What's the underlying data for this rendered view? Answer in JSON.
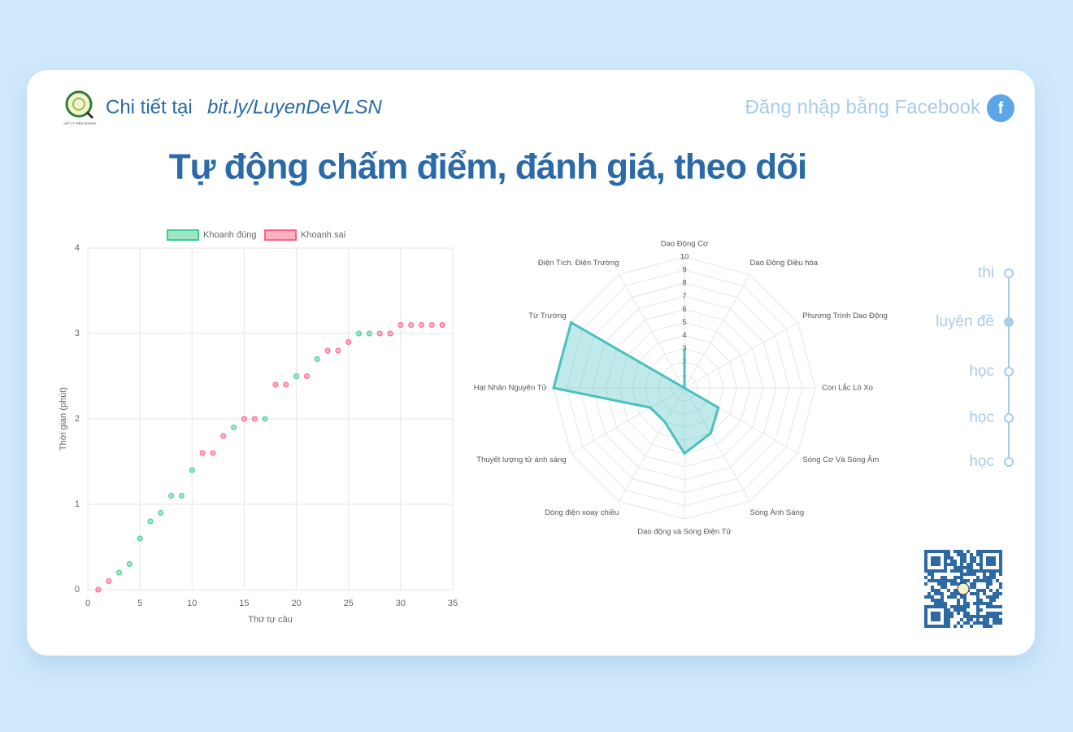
{
  "header": {
    "logo_text": "VẬT LÝ SIÊU NHANH",
    "link_prefix": "Chi tiết tại",
    "link": "bit.ly/LuyenDeVLSN",
    "login": "Đăng nhập bằng Facebook"
  },
  "title": "Tự động chấm điểm, đánh giá, theo dõi",
  "chart_data": [
    {
      "type": "scatter",
      "x_label": "Thứ tự câu",
      "y_label": "Thời gian (phút)",
      "xlim": [
        0,
        35
      ],
      "xticks": [
        0,
        5,
        10,
        15,
        20,
        25,
        30,
        35
      ],
      "ylim": [
        0,
        4
      ],
      "yticks": [
        0,
        1,
        2,
        3,
        4
      ],
      "grid": true,
      "series": [
        {
          "name": "Khoanh đúng",
          "color": "#3ecf8e",
          "x": [
            3,
            4,
            5,
            6,
            7,
            8,
            9,
            10,
            14,
            17,
            20,
            22,
            26,
            27
          ],
          "values": [
            0.2,
            0.3,
            0.6,
            0.8,
            0.9,
            1.1,
            1.1,
            1.4,
            1.9,
            2.0,
            2.5,
            2.7,
            3.0,
            3.0
          ]
        },
        {
          "name": "Khoanh sai",
          "color": "#ff6384",
          "x": [
            1,
            2,
            11,
            12,
            13,
            15,
            16,
            18,
            19,
            21,
            23,
            24,
            25,
            28,
            29,
            30,
            31,
            32,
            33,
            34
          ],
          "values": [
            0,
            0.1,
            1.6,
            1.6,
            1.8,
            2.0,
            2.0,
            2.4,
            2.4,
            2.5,
            2.8,
            2.8,
            2.9,
            3.0,
            3.0,
            3.1,
            3.1,
            3.1,
            3.1,
            3.1
          ]
        }
      ]
    },
    {
      "type": "radar",
      "categories": [
        "Dao Động Cơ",
        "Dao Động Điều hòa",
        "Phương Trình Dao Động",
        "Con Lắc Lò Xo",
        "Sóng Cơ Và Sóng Âm",
        "Sóng Ánh Sáng",
        "Dao động và Sóng Điện Tử",
        "Dòng điện xoay chiều",
        "Thuyết lượng tử ánh sáng",
        "Hạt Nhân Nguyên Tử",
        "Từ Trường",
        "Điện Tích. Điện Trường"
      ],
      "values": [
        3,
        0,
        0,
        0,
        3,
        4,
        5,
        3,
        3,
        10,
        10,
        0
      ],
      "color": "#4bc0c0",
      "rlim": [
        0,
        10
      ],
      "rticks": [
        1,
        2,
        3,
        4,
        5,
        6,
        7,
        8,
        9,
        10
      ]
    }
  ],
  "nav": [
    "thi",
    "luyện đề",
    "học",
    "học",
    "học"
  ]
}
